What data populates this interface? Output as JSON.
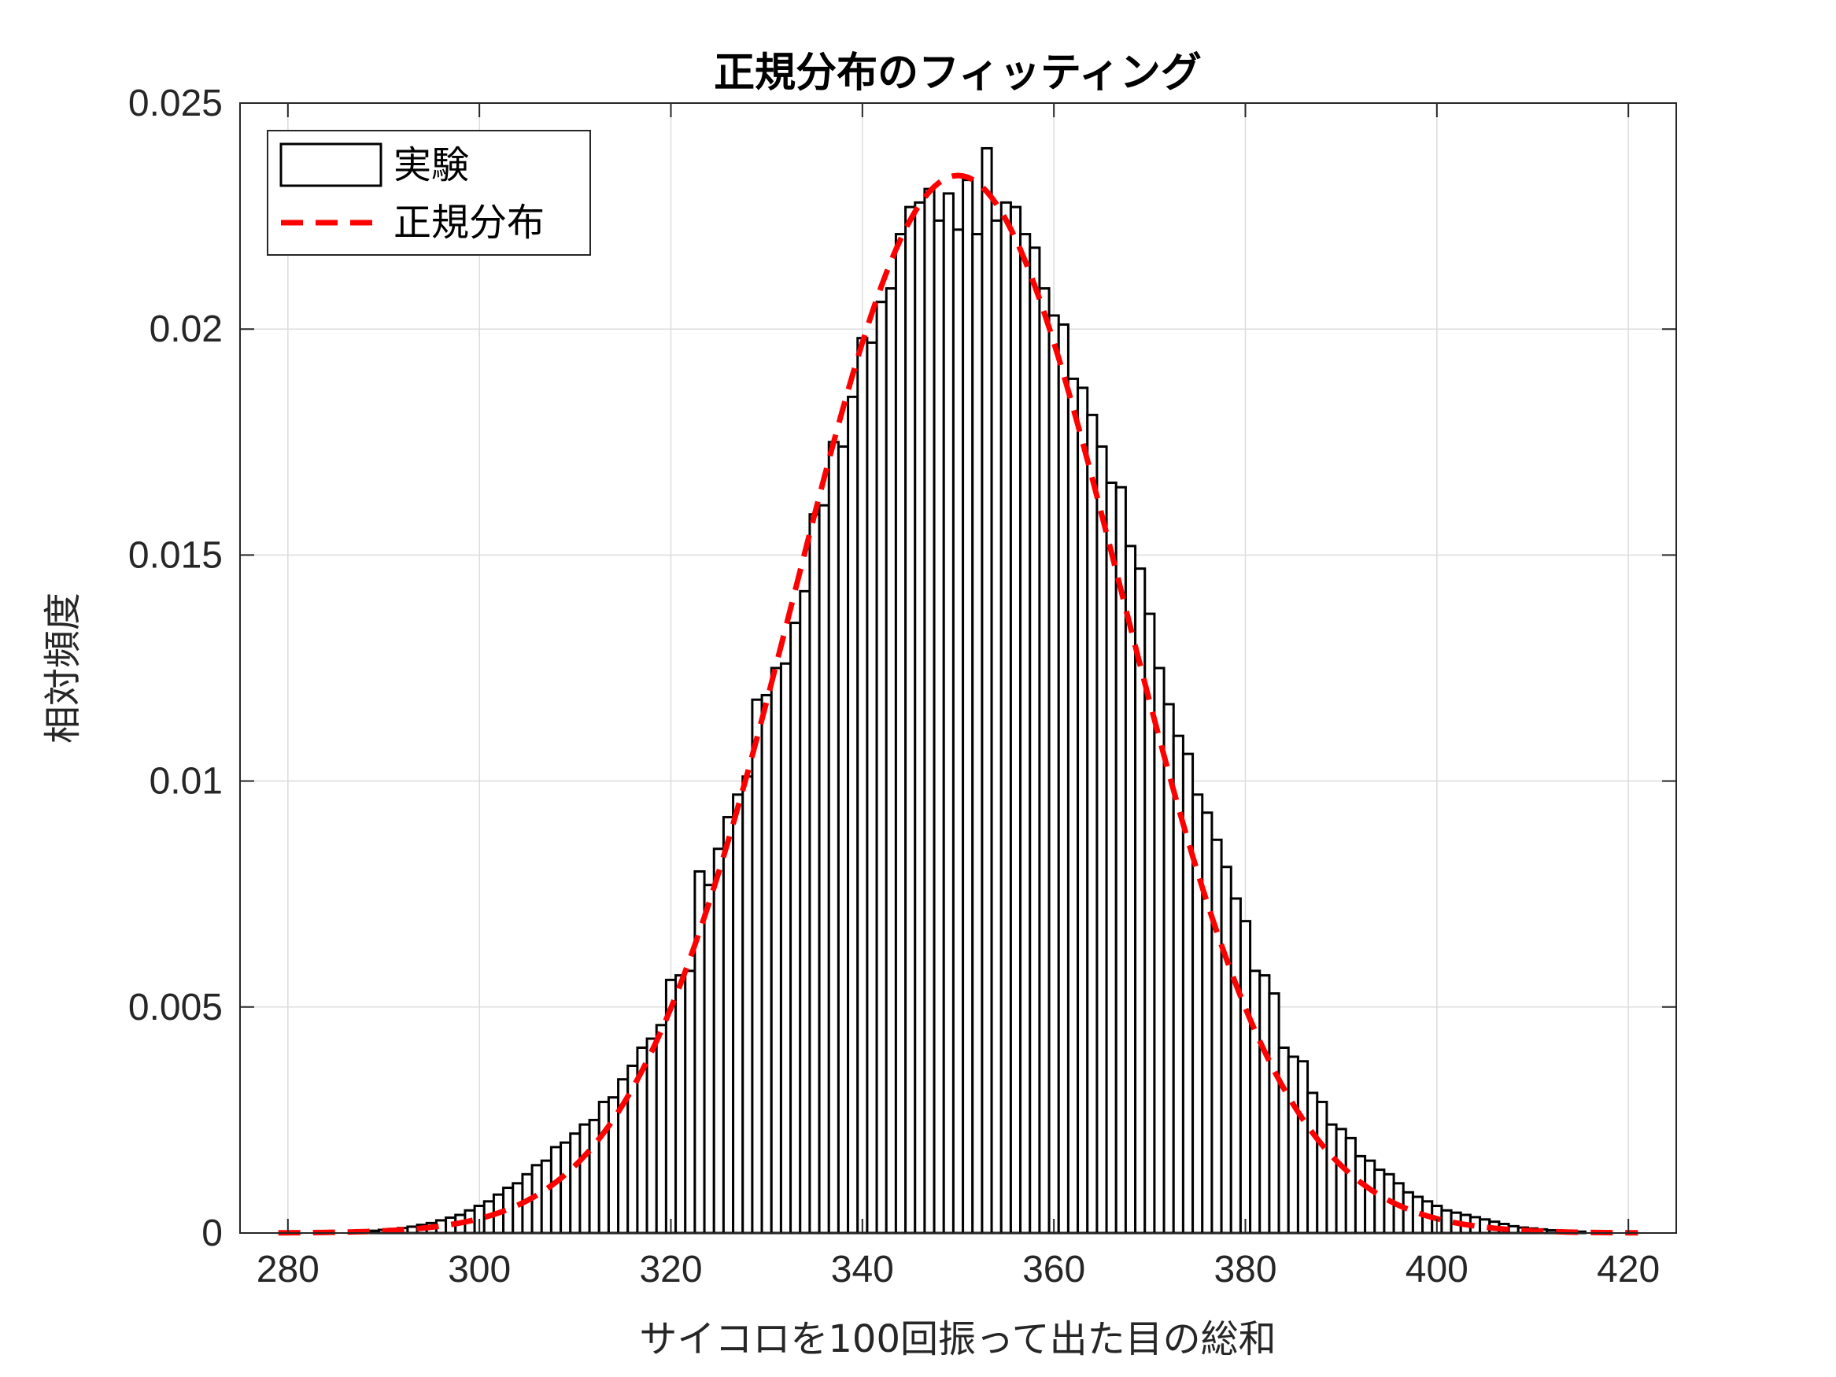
{
  "chart_data": {
    "type": "bar",
    "title": "正規分布のフィッティング",
    "xlabel": "サイコロを100回振って出た目の総和",
    "ylabel": "相対頻度",
    "xlim": [
      275,
      425
    ],
    "ylim": [
      0,
      0.025
    ],
    "xticks": [
      280,
      300,
      320,
      340,
      360,
      380,
      400,
      420
    ],
    "yticks": [
      0,
      0.005,
      0.01,
      0.015,
      0.02,
      0.025
    ],
    "ytick_labels": [
      "0",
      "0.005",
      "0.01",
      "0.015",
      "0.02",
      "0.025"
    ],
    "grid": true,
    "legend": {
      "placement": "top-left",
      "entries": [
        {
          "label": "実験",
          "style": "bar"
        },
        {
          "label": "正規分布",
          "style": "dashed-line",
          "color": "#ff0000"
        }
      ]
    },
    "bar_color": "#ffffff",
    "edge_color": "#000000",
    "fit_color": "#ff0000",
    "histogram": {
      "bin_width": 1,
      "x": [
        287,
        288,
        289,
        290,
        291,
        292,
        293,
        294,
        295,
        296,
        297,
        298,
        299,
        300,
        301,
        302,
        303,
        304,
        305,
        306,
        307,
        308,
        309,
        310,
        311,
        312,
        313,
        314,
        315,
        316,
        317,
        318,
        319,
        320,
        321,
        322,
        323,
        324,
        325,
        326,
        327,
        328,
        329,
        330,
        331,
        332,
        333,
        334,
        335,
        336,
        337,
        338,
        339,
        340,
        341,
        342,
        343,
        344,
        345,
        346,
        347,
        348,
        349,
        350,
        351,
        352,
        353,
        354,
        355,
        356,
        357,
        358,
        359,
        360,
        361,
        362,
        363,
        364,
        365,
        366,
        367,
        368,
        369,
        370,
        371,
        372,
        373,
        374,
        375,
        376,
        377,
        378,
        379,
        380,
        381,
        382,
        383,
        384,
        385,
        386,
        387,
        388,
        389,
        390,
        391,
        392,
        393,
        394,
        395,
        396,
        397,
        398,
        399,
        400,
        401,
        402,
        403,
        404,
        405,
        406,
        407,
        408,
        409,
        410,
        411,
        412,
        413,
        414,
        415
      ],
      "values": [
        3e-05,
        4e-05,
        5e-05,
        7e-05,
        9e-05,
        0.00011,
        0.00014,
        0.00018,
        0.00022,
        0.00028,
        0.00034,
        0.0004,
        0.0005,
        0.0006,
        0.0007,
        0.00085,
        0.001,
        0.0011,
        0.0013,
        0.0015,
        0.0016,
        0.0019,
        0.002,
        0.0022,
        0.0024,
        0.0025,
        0.0029,
        0.003,
        0.0034,
        0.0037,
        0.0041,
        0.0043,
        0.0046,
        0.0056,
        0.0057,
        0.0058,
        0.008,
        0.0077,
        0.0085,
        0.0092,
        0.0097,
        0.0101,
        0.0118,
        0.0119,
        0.0125,
        0.0126,
        0.0135,
        0.0142,
        0.0159,
        0.0161,
        0.0175,
        0.0174,
        0.0185,
        0.0198,
        0.0197,
        0.0206,
        0.0209,
        0.0221,
        0.0227,
        0.0228,
        0.0231,
        0.0224,
        0.023,
        0.0222,
        0.0233,
        0.0221,
        0.024,
        0.0224,
        0.0228,
        0.0227,
        0.0221,
        0.0218,
        0.0209,
        0.0203,
        0.0201,
        0.0189,
        0.0187,
        0.0181,
        0.0174,
        0.0166,
        0.0165,
        0.0152,
        0.0147,
        0.0137,
        0.0125,
        0.0117,
        0.011,
        0.0106,
        0.0097,
        0.0093,
        0.0087,
        0.0081,
        0.0074,
        0.0069,
        0.0058,
        0.0057,
        0.0053,
        0.0041,
        0.0039,
        0.0038,
        0.0031,
        0.0029,
        0.0024,
        0.0023,
        0.0021,
        0.0017,
        0.0016,
        0.0014,
        0.0013,
        0.0011,
        0.0009,
        0.0008,
        0.0007,
        0.0006,
        0.0005,
        0.00045,
        0.0004,
        0.00035,
        0.0003,
        0.00025,
        0.0002,
        0.00015,
        0.00012,
        0.0001,
        8e-05,
        6e-05,
        5e-05,
        4e-05,
        3e-05
      ]
    },
    "fit": {
      "x_range": [
        279,
        421
      ],
      "mean": 350,
      "std": 17.05
    }
  }
}
